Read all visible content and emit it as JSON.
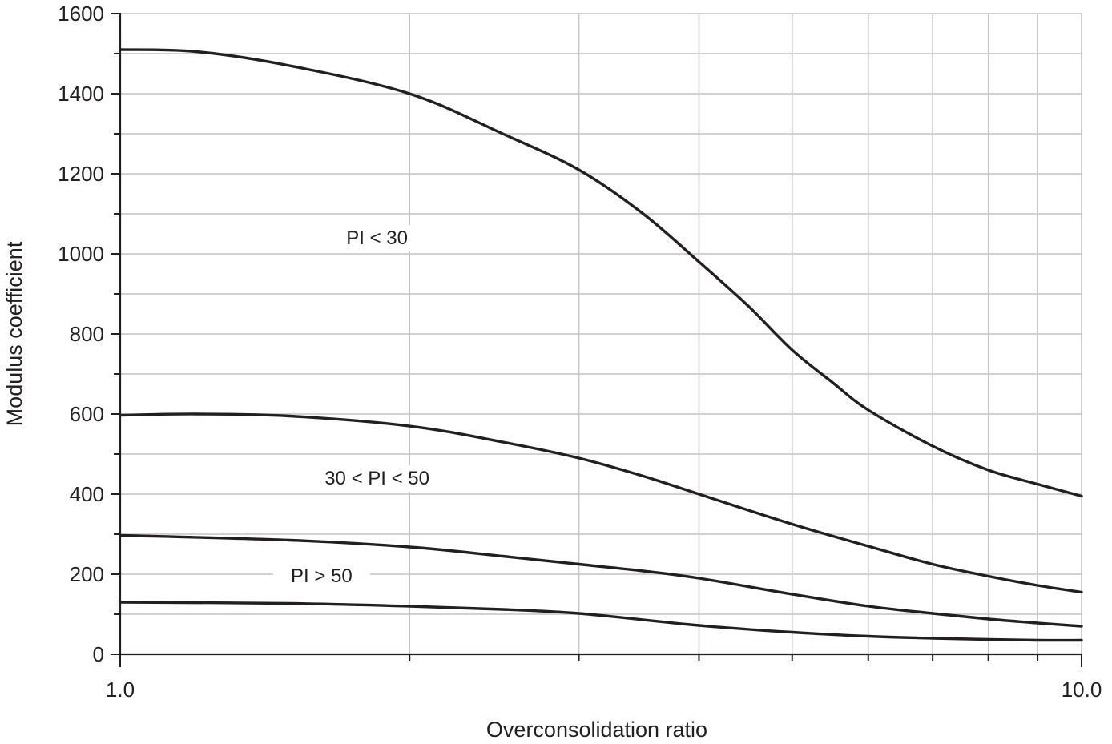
{
  "chart_data": {
    "type": "line",
    "title": "",
    "xlabel": "Overconsolidation ratio",
    "ylabel": "Modulus coefficient",
    "x_scale": "log",
    "xlim": [
      1.0,
      10.0
    ],
    "ylim": [
      0,
      1600
    ],
    "x_tick_labels": [
      "1.0",
      "10.0"
    ],
    "y_ticks": [
      0,
      200,
      400,
      600,
      800,
      1000,
      1200,
      1400,
      1600
    ],
    "y_tick_labels": [
      "0",
      "200",
      "400",
      "600",
      "800",
      "1000",
      "1200",
      "1400",
      "1600"
    ],
    "grid": true,
    "legend": "none",
    "annotations": [
      {
        "text": "PI < 30",
        "x": 1.85,
        "y": 1040
      },
      {
        "text": "30 < PI < 50",
        "x": 1.85,
        "y": 440
      },
      {
        "text": "PI > 50",
        "x": 1.62,
        "y": 196
      }
    ],
    "series": [
      {
        "x": [
          1.0,
          1.2,
          1.5,
          2.0,
          2.5,
          3.0,
          3.5,
          4.0,
          4.5,
          5.0,
          5.5,
          6.0,
          7.0,
          8.0,
          9.0,
          10.0
        ],
        "y": [
          1510,
          1505,
          1470,
          1400,
          1300,
          1210,
          1100,
          980,
          870,
          760,
          680,
          610,
          520,
          460,
          425,
          395
        ]
      },
      {
        "x": [
          1.0,
          1.2,
          1.5,
          2.0,
          2.5,
          3.0,
          3.5,
          4.0,
          5.0,
          6.0,
          7.0,
          8.0,
          9.0,
          10.0
        ],
        "y": [
          597,
          600,
          595,
          570,
          530,
          490,
          445,
          400,
          325,
          270,
          225,
          195,
          172,
          155
        ]
      },
      {
        "x": [
          1.0,
          1.5,
          2.0,
          2.5,
          3.0,
          3.5,
          4.0,
          5.0,
          6.0,
          7.0,
          8.0,
          9.0,
          10.0
        ],
        "y": [
          297,
          285,
          268,
          245,
          225,
          208,
          190,
          150,
          120,
          102,
          88,
          78,
          70
        ]
      },
      {
        "x": [
          1.0,
          1.5,
          2.0,
          2.5,
          3.0,
          4.0,
          5.0,
          6.0,
          7.0,
          8.0,
          9.0,
          10.0
        ],
        "y": [
          130,
          127,
          120,
          112,
          102,
          72,
          55,
          45,
          40,
          37,
          35,
          35
        ]
      }
    ]
  }
}
